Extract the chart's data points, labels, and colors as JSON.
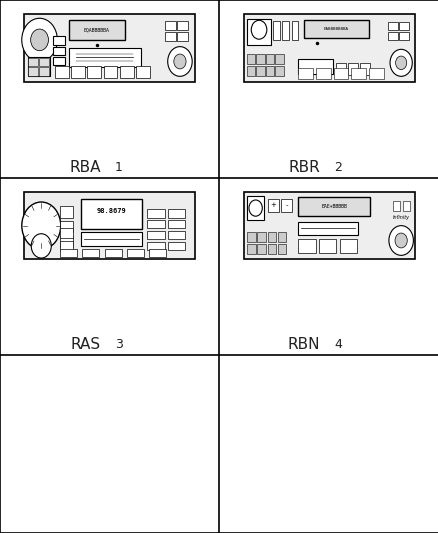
{
  "fig_width": 4.39,
  "fig_height": 5.33,
  "dpi": 100,
  "bg_color": "#ffffff",
  "grid_color": "#000000",
  "grid_lw": 1.2,
  "n_rows": 3,
  "n_cols": 2,
  "labels": [
    {
      "text": "RBA",
      "number": "1",
      "cell": [
        0,
        0
      ]
    },
    {
      "text": "RBR",
      "number": "2",
      "cell": [
        0,
        1
      ]
    },
    {
      "text": "RAS",
      "number": "3",
      "cell": [
        1,
        0
      ]
    },
    {
      "text": "RBN",
      "number": "4",
      "cell": [
        1,
        1
      ]
    }
  ],
  "label_fontsize": 11,
  "number_fontsize": 9,
  "radio_color": "#000000",
  "radio_fill": "#f5f5f5",
  "radio_lw": 0.8
}
